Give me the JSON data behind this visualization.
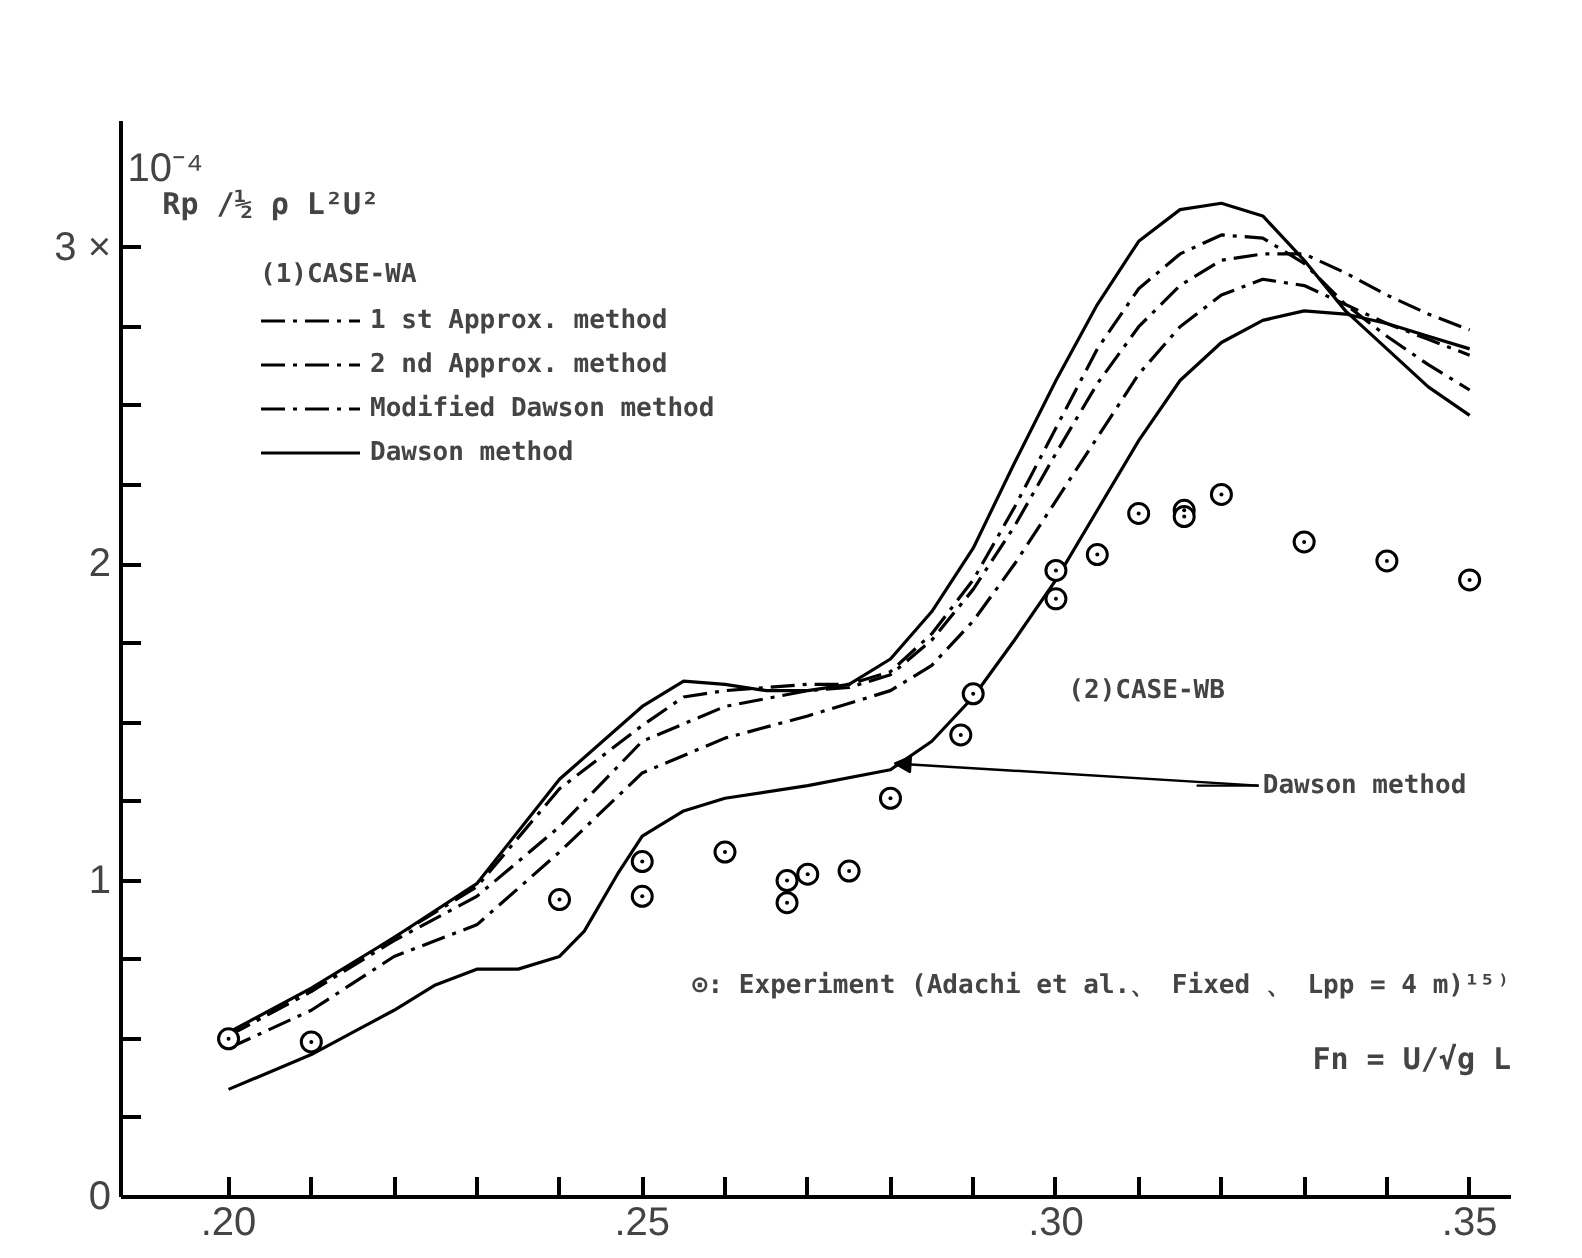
{
  "chart_data": {
    "type": "line",
    "xlabel": "Fn = U/√g L",
    "ylabel": "Rp /½ ρ L²U²",
    "legend_title": "(1)CASE-WA",
    "legend": "top left",
    "grid": false,
    "marker": "none",
    "xlim": [
      0.187,
      0.355
    ],
    "ylim": [
      0,
      3.4
    ],
    "xticks": [
      {
        "value": 0.2,
        "label": ".20"
      },
      {
        "value": 0.21,
        "label": null
      },
      {
        "value": 0.22,
        "label": null
      },
      {
        "value": 0.23,
        "label": null
      },
      {
        "value": 0.24,
        "label": null
      },
      {
        "value": 0.25,
        "label": ".25"
      },
      {
        "value": 0.26,
        "label": null
      },
      {
        "value": 0.27,
        "label": null
      },
      {
        "value": 0.28,
        "label": null
      },
      {
        "value": 0.29,
        "label": null
      },
      {
        "value": 0.3,
        "label": ".30"
      },
      {
        "value": 0.31,
        "label": null
      },
      {
        "value": 0.32,
        "label": null
      },
      {
        "value": 0.33,
        "label": null
      },
      {
        "value": 0.34,
        "label": null
      },
      {
        "value": 0.35,
        "label": ".35"
      }
    ],
    "yticks": [
      0,
      {
        "value": 0.25,
        "label": null
      },
      {
        "value": 0.5,
        "label": null
      },
      {
        "value": 0.75,
        "label": null
      },
      1,
      {
        "value": 1.25,
        "label": null
      },
      {
        "value": 1.5,
        "label": null
      },
      {
        "value": 1.75,
        "label": null
      },
      2,
      {
        "value": 2.25,
        "label": null
      },
      {
        "value": 2.5,
        "label": null
      },
      {
        "value": 2.75,
        "label": null
      },
      {
        "value": 3,
        "label": "3 ×"
      }
    ],
    "series": [
      {
        "name": "1 st Approx. method",
        "color": "#000000",
        "line_style": "dashed",
        "x": [
          0.2,
          0.21,
          0.22,
          0.23,
          0.24,
          0.25,
          0.26,
          0.27,
          0.28,
          0.285,
          0.29,
          0.295,
          0.3,
          0.305,
          0.31,
          0.315,
          0.32,
          0.325,
          0.33,
          0.335,
          0.34,
          0.345,
          0.35
        ],
        "values": [
          0.47,
          0.59,
          0.76,
          0.86,
          1.09,
          1.34,
          1.45,
          1.52,
          1.6,
          1.68,
          1.82,
          2.0,
          2.2,
          2.4,
          2.6,
          2.75,
          2.85,
          2.9,
          2.88,
          2.82,
          2.76,
          2.71,
          2.66
        ]
      },
      {
        "name": "2 nd Approx. method",
        "color": "#000000",
        "line_style": "dashed",
        "x": [
          0.2,
          0.21,
          0.22,
          0.23,
          0.24,
          0.25,
          0.26,
          0.27,
          0.275,
          0.28,
          0.285,
          0.29,
          0.295,
          0.3,
          0.305,
          0.31,
          0.315,
          0.32,
          0.325,
          0.33,
          0.335,
          0.34,
          0.345,
          0.35
        ],
        "values": [
          0.51,
          0.65,
          0.81,
          0.95,
          1.17,
          1.44,
          1.55,
          1.6,
          1.61,
          1.65,
          1.76,
          1.92,
          2.12,
          2.35,
          2.57,
          2.75,
          2.88,
          2.96,
          2.98,
          2.98,
          2.92,
          2.85,
          2.79,
          2.74
        ]
      },
      {
        "name": "Modified Dawson method",
        "color": "#000000",
        "line_style": "dashed",
        "x": [
          0.2,
          0.21,
          0.22,
          0.23,
          0.24,
          0.25,
          0.255,
          0.26,
          0.265,
          0.27,
          0.275,
          0.28,
          0.285,
          0.29,
          0.295,
          0.3,
          0.305,
          0.31,
          0.315,
          0.32,
          0.325,
          0.33,
          0.335,
          0.34,
          0.345,
          0.35
        ],
        "values": [
          0.51,
          0.65,
          0.82,
          0.98,
          1.29,
          1.49,
          1.58,
          1.6,
          1.61,
          1.62,
          1.62,
          1.66,
          1.78,
          1.95,
          2.18,
          2.43,
          2.68,
          2.87,
          2.98,
          3.04,
          3.03,
          2.95,
          2.82,
          2.72,
          2.63,
          2.55
        ]
      },
      {
        "name": "Dawson method",
        "color": "#000000",
        "line_style": "solid",
        "x": [
          0.2,
          0.21,
          0.22,
          0.23,
          0.24,
          0.25,
          0.255,
          0.26,
          0.265,
          0.27,
          0.275,
          0.28,
          0.285,
          0.29,
          0.295,
          0.3,
          0.305,
          0.31,
          0.315,
          0.32,
          0.325,
          0.33,
          0.335,
          0.34,
          0.345,
          0.35
        ],
        "values": [
          0.52,
          0.66,
          0.82,
          0.99,
          1.32,
          1.55,
          1.63,
          1.62,
          1.6,
          1.6,
          1.62,
          1.7,
          1.85,
          2.05,
          2.32,
          2.58,
          2.82,
          3.02,
          3.12,
          3.14,
          3.1,
          2.96,
          2.8,
          2.68,
          2.56,
          2.47
        ]
      },
      {
        "color": "#000000",
        "line_style": "solid",
        "x": [
          0.2,
          0.21,
          0.215,
          0.22,
          0.225,
          0.23,
          0.235,
          0.24,
          0.243,
          0.247,
          0.25,
          0.255,
          0.26,
          0.27,
          0.28,
          0.285,
          0.29,
          0.295,
          0.3,
          0.305,
          0.31,
          0.315,
          0.32,
          0.325,
          0.33,
          0.335,
          0.34,
          0.345,
          0.35
        ],
        "values": [
          0.34,
          0.45,
          0.52,
          0.59,
          0.67,
          0.72,
          0.72,
          0.76,
          0.84,
          1.02,
          1.14,
          1.22,
          1.26,
          1.3,
          1.35,
          1.44,
          1.58,
          1.76,
          1.95,
          2.17,
          2.39,
          2.58,
          2.7,
          2.77,
          2.8,
          2.79,
          2.76,
          2.72,
          2.68
        ]
      },
      {
        "type": "scatter",
        "marker": "circle",
        "color": "#000000",
        "x": [
          0.2,
          0.21,
          0.24,
          0.25,
          0.25,
          0.26,
          0.2675,
          0.2675,
          0.27,
          0.275,
          0.28,
          0.2885,
          0.29,
          0.3,
          0.3,
          0.305,
          0.31,
          0.3155,
          0.3155,
          0.32,
          0.33,
          0.34,
          0.35
        ],
        "values": [
          0.5,
          0.49,
          0.94,
          1.06,
          0.95,
          1.09,
          1.0,
          0.93,
          1.02,
          1.03,
          1.26,
          1.46,
          1.59,
          1.98,
          1.89,
          2.03,
          2.16,
          2.17,
          2.15,
          2.22,
          2.07,
          2.01,
          1.95
        ]
      }
    ],
    "annotations": [
      "10⁻⁴",
      "(2)CASE-WB",
      {
        "text": "Dawson method",
        "x": 0.2805,
        "y": 1.37
      },
      "⊙: Experiment (Adachi et al.、 Fixed 、 Lpp = 4 m)¹⁵⁾"
    ]
  }
}
